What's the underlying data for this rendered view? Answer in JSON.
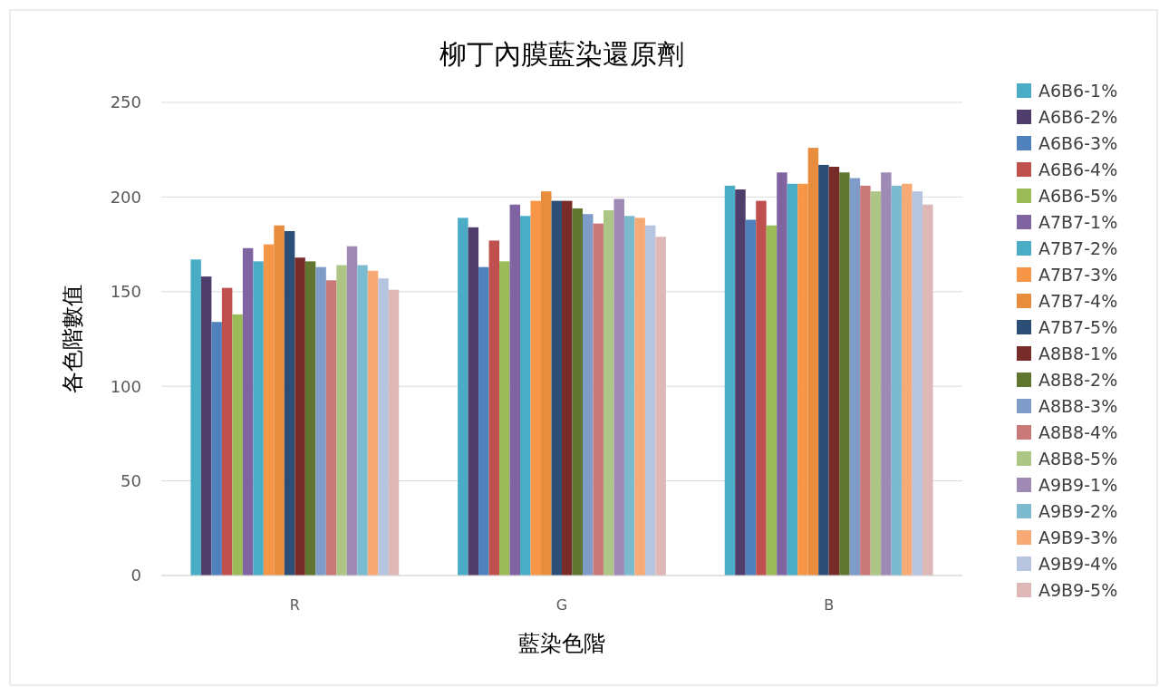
{
  "chart_data": {
    "type": "bar",
    "title": "柳丁內膜藍染還原劑",
    "xlabel": "藍染色階",
    "ylabel": "各色階數值",
    "categories": [
      "R",
      "G",
      "B"
    ],
    "ylim": [
      0,
      250
    ],
    "yticks": [
      0,
      50,
      100,
      150,
      200,
      250
    ],
    "grid": "y",
    "legend": "right",
    "series": [
      {
        "name": "A6B6-1%",
        "color": "#4bacc6",
        "values": [
          167,
          189,
          206
        ]
      },
      {
        "name": "A6B6-2%",
        "color": "#4f3d6b",
        "values": [
          158,
          184,
          204
        ]
      },
      {
        "name": "A6B6-3%",
        "color": "#4f81bd",
        "values": [
          134,
          163,
          188
        ]
      },
      {
        "name": "A6B6-4%",
        "color": "#c0504d",
        "values": [
          152,
          177,
          198
        ]
      },
      {
        "name": "A6B6-5%",
        "color": "#9bbb59",
        "values": [
          138,
          166,
          185
        ]
      },
      {
        "name": "A7B7-1%",
        "color": "#8064a2",
        "values": [
          173,
          196,
          213
        ]
      },
      {
        "name": "A7B7-2%",
        "color": "#4bacc6",
        "values": [
          166,
          190,
          207
        ]
      },
      {
        "name": "A7B7-3%",
        "color": "#f79646",
        "values": [
          175,
          198,
          207
        ]
      },
      {
        "name": "A7B7-4%",
        "color": "#e88c3e",
        "values": [
          185,
          203,
          226
        ]
      },
      {
        "name": "A7B7-5%",
        "color": "#2c4d75",
        "values": [
          182,
          198,
          217
        ]
      },
      {
        "name": "A8B8-1%",
        "color": "#772c2a",
        "values": [
          168,
          198,
          216
        ]
      },
      {
        "name": "A8B8-2%",
        "color": "#5f7530",
        "values": [
          166,
          194,
          213
        ]
      },
      {
        "name": "A8B8-3%",
        "color": "#7f9bc8",
        "values": [
          163,
          191,
          210
        ]
      },
      {
        "name": "A8B8-4%",
        "color": "#c97a78",
        "values": [
          156,
          186,
          206
        ]
      },
      {
        "name": "A8B8-5%",
        "color": "#adc585",
        "values": [
          164,
          193,
          203
        ]
      },
      {
        "name": "A9B9-1%",
        "color": "#9e8ab5",
        "values": [
          174,
          199,
          213
        ]
      },
      {
        "name": "A9B9-2%",
        "color": "#7bbacf",
        "values": [
          164,
          190,
          206
        ]
      },
      {
        "name": "A9B9-3%",
        "color": "#f8aa76",
        "values": [
          161,
          189,
          207
        ]
      },
      {
        "name": "A9B9-4%",
        "color": "#b7c4df",
        "values": [
          157,
          185,
          203
        ]
      },
      {
        "name": "A9B9-5%",
        "color": "#deb7b7",
        "values": [
          151,
          179,
          196
        ]
      }
    ]
  }
}
